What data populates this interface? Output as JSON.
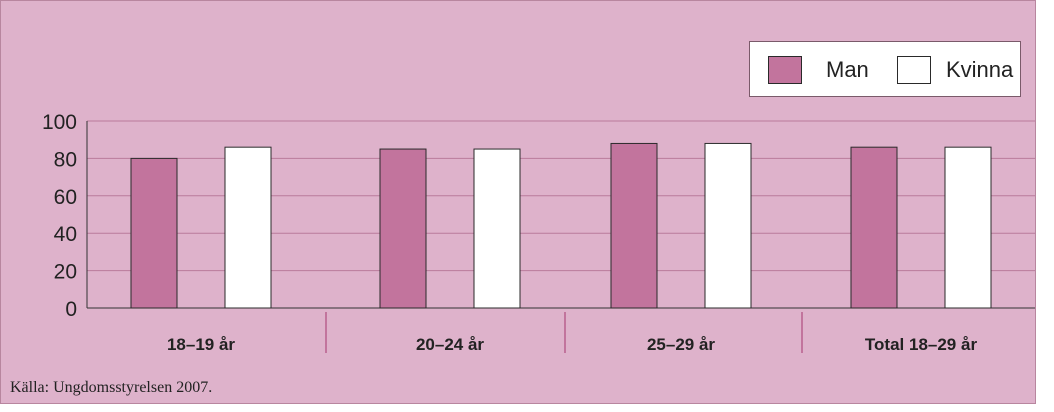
{
  "chart_data": {
    "type": "bar",
    "categories": [
      "18–19 år",
      "20–24 år",
      "25–29 år",
      "Total 18–29 år"
    ],
    "series": [
      {
        "name": "Man",
        "values": [
          80,
          85,
          88,
          86
        ]
      },
      {
        "name": "Kvinna",
        "values": [
          86,
          85,
          88,
          86
        ]
      }
    ],
    "title": "",
    "xlabel": "",
    "ylabel": "",
    "ylim": [
      0,
      100
    ],
    "yticks": [
      0,
      20,
      40,
      60,
      80,
      100
    ],
    "grid": true,
    "legend_position": "top-right"
  },
  "legend": {
    "man_label": "Man",
    "kvinna_label": "Kvinna"
  },
  "source": "Källa: Ungdomsstyrelsen 2007.",
  "colors": {
    "background": "#deb2cb",
    "man": "#c2749d",
    "kvinna": "#ffffff",
    "gridline": "#b97b9b",
    "separator": "#c2749d"
  }
}
